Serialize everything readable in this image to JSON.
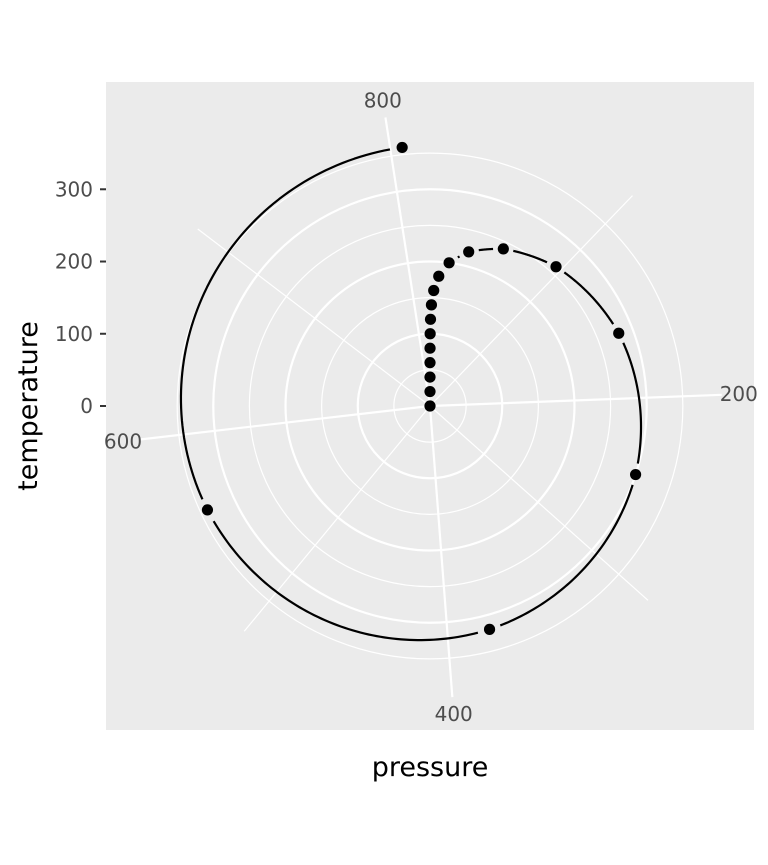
{
  "chart_data": {
    "type": "scatter",
    "coord": "polar",
    "xlabel": "pressure",
    "ylabel": "temperature",
    "x_axis": {
      "range": [
        0,
        820
      ],
      "ticks": [
        200,
        400,
        600,
        800
      ],
      "direction": "clockwise",
      "start": "top"
    },
    "y_axis": {
      "range": [
        0,
        360
      ],
      "ticks": [
        0,
        100,
        200,
        300
      ]
    },
    "grid": true,
    "legend": "none",
    "colors": {
      "panel": "#ebebeb",
      "grid": "#ffffff",
      "point": "#000000",
      "tick_text": "#4d4d4d"
    },
    "points": [
      {
        "x": 0.0002,
        "y": 0
      },
      {
        "x": 0.0012,
        "y": 20
      },
      {
        "x": 0.006,
        "y": 40
      },
      {
        "x": 0.03,
        "y": 60
      },
      {
        "x": 0.09,
        "y": 80
      },
      {
        "x": 0.27,
        "y": 100
      },
      {
        "x": 0.75,
        "y": 120
      },
      {
        "x": 1.85,
        "y": 140
      },
      {
        "x": 4.2,
        "y": 160
      },
      {
        "x": 8.8,
        "y": 180
      },
      {
        "x": 17.3,
        "y": 200
      },
      {
        "x": 32.1,
        "y": 220
      },
      {
        "x": 57.0,
        "y": 240
      },
      {
        "x": 96.0,
        "y": 260
      },
      {
        "x": 157.0,
        "y": 280
      },
      {
        "x": 247.0,
        "y": 300
      },
      {
        "x": 376.0,
        "y": 320
      },
      {
        "x": 558.0,
        "y": 340
      },
      {
        "x": 806.0,
        "y": 360
      }
    ]
  }
}
